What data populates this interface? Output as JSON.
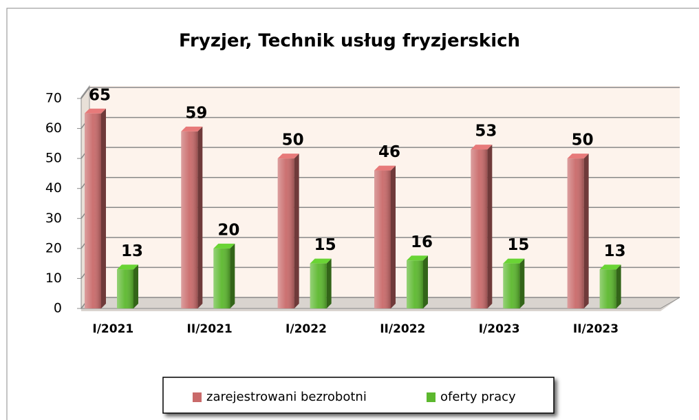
{
  "chart_data": {
    "type": "bar",
    "title": "Fryzjer, Technik usług fryzjerskich",
    "categories": [
      "I/2021",
      "II/2021",
      "I/2022",
      "II/2022",
      "I/2023",
      "II/2023"
    ],
    "series": [
      {
        "name": "zarejestrowani bezrobotni",
        "color": "#c96a6a",
        "values": [
          65,
          59,
          50,
          46,
          53,
          50
        ]
      },
      {
        "name": "oferty pracy",
        "color": "#5cb82e",
        "values": [
          13,
          20,
          15,
          16,
          15,
          13
        ]
      }
    ],
    "ylim": [
      0,
      70
    ],
    "yticks": [
      0,
      10,
      20,
      30,
      40,
      50,
      60,
      70
    ],
    "grid": true,
    "legend": "bottom"
  }
}
